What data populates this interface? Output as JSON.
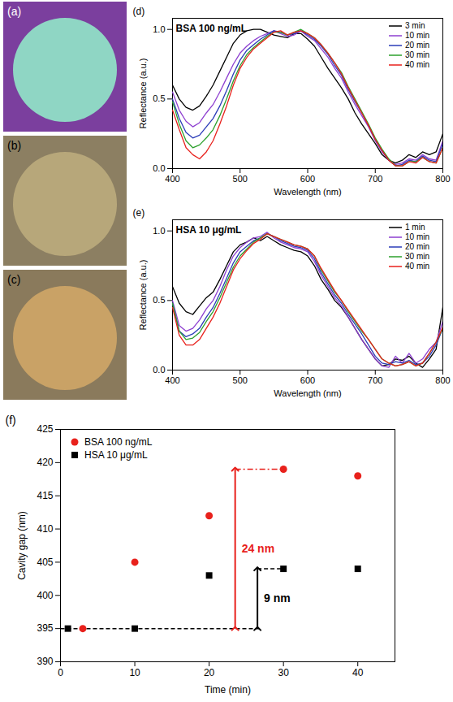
{
  "images": [
    {
      "label": "(a)",
      "background": "#7b3f9e",
      "color": "#8fd6c4"
    },
    {
      "label": "(b)",
      "background": "#8c7f62",
      "color": "#b7a77a"
    },
    {
      "label": "(c)",
      "background": "#8a7a5c",
      "color": "#c9a266"
    }
  ],
  "chart_data": [
    {
      "type": "line",
      "panel_label": "(d)",
      "title": "BSA 100 ng/mL",
      "xlabel": "Wavelength (nm)",
      "ylabel": "Reflectance (a.u.)",
      "x": [
        400,
        410,
        420,
        430,
        440,
        450,
        460,
        470,
        480,
        490,
        500,
        510,
        520,
        530,
        540,
        550,
        560,
        570,
        580,
        590,
        600,
        610,
        620,
        630,
        640,
        650,
        660,
        670,
        680,
        690,
        700,
        710,
        720,
        730,
        740,
        750,
        760,
        770,
        780,
        790,
        800
      ],
      "xlim": [
        400,
        800
      ],
      "xticks": [
        400,
        500,
        600,
        700,
        800
      ],
      "ylim": [
        0,
        1.08
      ],
      "yticks": [
        {
          "value": 0,
          "label": "0.0"
        },
        {
          "value": 0.5,
          "label": "0.5"
        },
        {
          "value": 1,
          "label": "1.0"
        }
      ],
      "legend": "top-right",
      "series": [
        {
          "name": "3 min",
          "color": "#000000",
          "values": [
            0.6,
            0.5,
            0.44,
            0.42,
            0.45,
            0.52,
            0.6,
            0.7,
            0.8,
            0.9,
            0.96,
            0.99,
            1.0,
            1.0,
            0.98,
            0.96,
            0.95,
            0.94,
            0.97,
            0.97,
            0.93,
            0.88,
            0.8,
            0.72,
            0.65,
            0.58,
            0.5,
            0.4,
            0.32,
            0.25,
            0.18,
            0.1,
            0.06,
            0.04,
            0.06,
            0.1,
            0.08,
            0.12,
            0.1,
            0.12,
            0.25
          ]
        },
        {
          "name": "10 min",
          "color": "#8e3fd0",
          "values": [
            0.55,
            0.42,
            0.34,
            0.3,
            0.33,
            0.4,
            0.46,
            0.55,
            0.65,
            0.75,
            0.83,
            0.88,
            0.92,
            0.95,
            0.97,
            0.99,
            0.97,
            0.95,
            0.96,
            0.99,
            0.95,
            0.92,
            0.86,
            0.8,
            0.72,
            0.65,
            0.55,
            0.46,
            0.38,
            0.3,
            0.2,
            0.12,
            0.06,
            0.03,
            0.04,
            0.07,
            0.06,
            0.1,
            0.07,
            0.06,
            0.2
          ]
        },
        {
          "name": "20 min",
          "color": "#2b3cb8",
          "values": [
            0.5,
            0.36,
            0.26,
            0.22,
            0.24,
            0.3,
            0.36,
            0.45,
            0.56,
            0.68,
            0.78,
            0.85,
            0.89,
            0.93,
            0.96,
            0.99,
            0.98,
            0.96,
            0.97,
            0.99,
            0.96,
            0.93,
            0.88,
            0.82,
            0.74,
            0.67,
            0.57,
            0.48,
            0.4,
            0.31,
            0.21,
            0.13,
            0.06,
            0.02,
            0.03,
            0.06,
            0.05,
            0.09,
            0.06,
            0.05,
            0.18
          ]
        },
        {
          "name": "30 min",
          "color": "#2ca02c",
          "values": [
            0.48,
            0.32,
            0.2,
            0.15,
            0.17,
            0.22,
            0.28,
            0.38,
            0.5,
            0.63,
            0.74,
            0.82,
            0.87,
            0.91,
            0.95,
            0.98,
            0.98,
            0.96,
            0.98,
            1.0,
            0.97,
            0.94,
            0.89,
            0.83,
            0.76,
            0.69,
            0.59,
            0.5,
            0.41,
            0.32,
            0.22,
            0.14,
            0.07,
            0.02,
            0.02,
            0.05,
            0.05,
            0.08,
            0.05,
            0.04,
            0.15
          ]
        },
        {
          "name": "40 min",
          "color": "#e8211c",
          "values": [
            0.42,
            0.28,
            0.15,
            0.1,
            0.07,
            0.12,
            0.2,
            0.32,
            0.45,
            0.6,
            0.72,
            0.8,
            0.86,
            0.9,
            0.94,
            0.98,
            0.99,
            0.96,
            0.98,
            0.99,
            0.97,
            0.94,
            0.89,
            0.83,
            0.76,
            0.68,
            0.58,
            0.49,
            0.4,
            0.31,
            0.21,
            0.13,
            0.06,
            0.02,
            0.02,
            0.05,
            0.04,
            0.08,
            0.05,
            0.04,
            0.15
          ]
        }
      ]
    },
    {
      "type": "line",
      "panel_label": "(e)",
      "title": "HSA 10 μg/mL",
      "xlabel": "Wavelength (nm)",
      "ylabel": "Reflectance (a.u.)",
      "x": [
        400,
        410,
        420,
        430,
        440,
        450,
        460,
        470,
        480,
        490,
        500,
        510,
        520,
        530,
        540,
        550,
        560,
        570,
        580,
        590,
        600,
        610,
        620,
        630,
        640,
        650,
        660,
        670,
        680,
        690,
        700,
        710,
        720,
        730,
        740,
        750,
        760,
        770,
        780,
        790,
        800
      ],
      "xlim": [
        400,
        800
      ],
      "xticks": [
        400,
        500,
        600,
        700,
        800
      ],
      "ylim": [
        0,
        1.08
      ],
      "yticks": [
        {
          "value": 0,
          "label": "0.0"
        },
        {
          "value": 0.5,
          "label": "0.5"
        },
        {
          "value": 1,
          "label": "1.0"
        }
      ],
      "legend": "top-right",
      "series": [
        {
          "name": "1 min",
          "color": "#000000",
          "values": [
            0.6,
            0.48,
            0.42,
            0.4,
            0.46,
            0.52,
            0.56,
            0.65,
            0.75,
            0.85,
            0.9,
            0.92,
            0.95,
            0.93,
            0.96,
            0.93,
            0.9,
            0.88,
            0.86,
            0.85,
            0.82,
            0.75,
            0.65,
            0.58,
            0.5,
            0.45,
            0.38,
            0.3,
            0.22,
            0.15,
            0.08,
            0.03,
            0.04,
            0.08,
            0.07,
            0.1,
            0.05,
            0.02,
            0.08,
            0.15,
            0.45
          ]
        },
        {
          "name": "10 min",
          "color": "#8e3fd0",
          "values": [
            0.5,
            0.32,
            0.28,
            0.3,
            0.36,
            0.44,
            0.5,
            0.6,
            0.72,
            0.82,
            0.88,
            0.92,
            0.95,
            0.96,
            0.99,
            0.95,
            0.92,
            0.9,
            0.88,
            0.87,
            0.85,
            0.78,
            0.68,
            0.6,
            0.52,
            0.46,
            0.38,
            0.3,
            0.22,
            0.15,
            0.08,
            0.03,
            0.02,
            0.1,
            0.05,
            0.12,
            0.05,
            0.08,
            0.15,
            0.2,
            0.35
          ]
        },
        {
          "name": "20 min",
          "color": "#2b3cb8",
          "values": [
            0.48,
            0.28,
            0.24,
            0.26,
            0.3,
            0.38,
            0.45,
            0.55,
            0.66,
            0.77,
            0.85,
            0.89,
            0.93,
            0.95,
            0.98,
            0.96,
            0.93,
            0.91,
            0.89,
            0.88,
            0.86,
            0.8,
            0.7,
            0.62,
            0.54,
            0.48,
            0.4,
            0.33,
            0.26,
            0.18,
            0.1,
            0.05,
            0.04,
            0.06,
            0.05,
            0.07,
            0.04,
            0.05,
            0.1,
            0.18,
            0.3
          ]
        },
        {
          "name": "30 min",
          "color": "#2ca02c",
          "values": [
            0.48,
            0.28,
            0.22,
            0.23,
            0.27,
            0.35,
            0.42,
            0.52,
            0.63,
            0.74,
            0.82,
            0.87,
            0.92,
            0.95,
            0.98,
            0.96,
            0.94,
            0.92,
            0.9,
            0.89,
            0.87,
            0.82,
            0.72,
            0.64,
            0.56,
            0.5,
            0.42,
            0.35,
            0.28,
            0.22,
            0.15,
            0.08,
            0.05,
            0.03,
            0.04,
            0.06,
            0.03,
            0.05,
            0.12,
            0.2,
            0.3
          ]
        },
        {
          "name": "40 min",
          "color": "#e8211c",
          "values": [
            0.45,
            0.25,
            0.18,
            0.18,
            0.22,
            0.3,
            0.38,
            0.48,
            0.6,
            0.72,
            0.8,
            0.86,
            0.91,
            0.94,
            0.98,
            0.96,
            0.94,
            0.92,
            0.9,
            0.89,
            0.87,
            0.82,
            0.73,
            0.65,
            0.57,
            0.5,
            0.43,
            0.36,
            0.29,
            0.22,
            0.15,
            0.08,
            0.05,
            0.03,
            0.04,
            0.06,
            0.03,
            0.05,
            0.12,
            0.2,
            0.31
          ]
        }
      ]
    },
    {
      "type": "scatter",
      "panel_label": "(f)",
      "xlabel": "Time (min)",
      "ylabel": "Cavity gap (nm)",
      "xlim": [
        0,
        45
      ],
      "xticks": [
        0,
        10,
        20,
        30,
        40
      ],
      "ylim": [
        390,
        425
      ],
      "yticks": [
        390,
        395,
        400,
        405,
        410,
        415,
        420,
        425
      ],
      "legend": "top-left",
      "series": [
        {
          "name": "BSA 100 ng/mL",
          "color": "#e8211c",
          "marker": "circle",
          "x": [
            3,
            10,
            20,
            30,
            40
          ],
          "values": [
            395,
            405,
            412,
            419,
            418
          ]
        },
        {
          "name": "HSA 10 μg/mL",
          "color": "#000000",
          "marker": "square",
          "x": [
            1,
            10,
            20,
            30,
            40
          ],
          "values": [
            395,
            395,
            403,
            404,
            404
          ]
        }
      ],
      "annotations": [
        {
          "type": "line",
          "x": [
            0,
            27
          ],
          "y": 395,
          "color": "#000000",
          "line_style": "dashed"
        },
        {
          "type": "arrow",
          "text": "24 nm",
          "x": 23.5,
          "y": [
            395,
            419
          ],
          "x_to": 30,
          "color": "#e8211c",
          "line_style": "dashdot"
        },
        {
          "type": "arrow",
          "text": "9 nm",
          "x": 26.5,
          "y": [
            395,
            404
          ],
          "x_to": 30,
          "color": "#000000",
          "line_style": "dashed"
        }
      ]
    }
  ]
}
